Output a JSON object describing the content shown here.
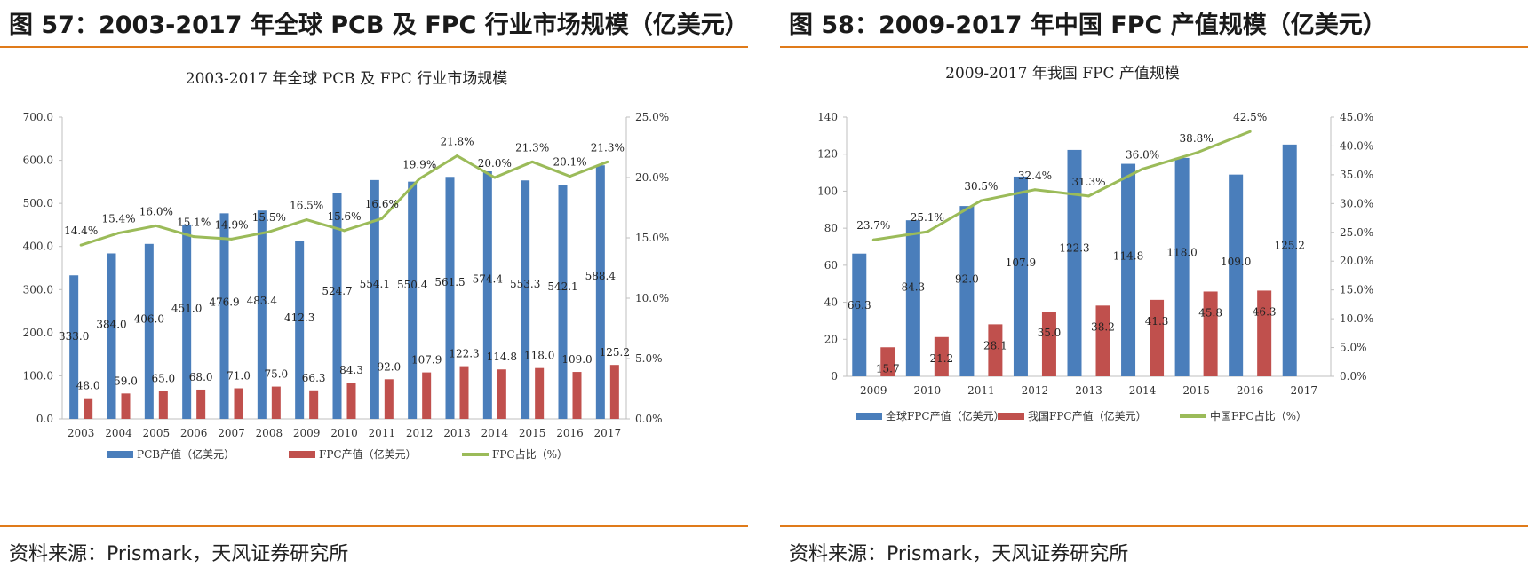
{
  "left": {
    "header": "图 57：2003-2017 年全球 PCB 及 FPC 行业市场规模（亿美元）",
    "source": "资料来源：Prismark，天风证券研究所",
    "chart_data": {
      "type": "bar",
      "title": "2003-2017 年全球 PCB 及 FPC 行业市场规模",
      "categories": [
        "2003",
        "2004",
        "2005",
        "2006",
        "2007",
        "2008",
        "2009",
        "2010",
        "2011",
        "2012",
        "2013",
        "2014",
        "2015",
        "2016",
        "2017"
      ],
      "series": [
        {
          "name": "PCB产值（亿美元）",
          "kind": "bar",
          "axis": "left",
          "color": "#4a7ebb",
          "values": [
            333.0,
            384.0,
            406.0,
            451.0,
            476.9,
            483.4,
            412.3,
            524.7,
            554.1,
            550.4,
            561.5,
            574.4,
            553.3,
            542.1,
            588.4
          ],
          "labels": [
            "333.0",
            "384.0",
            "406.0",
            "451.0",
            "476.9",
            "483.4",
            "412.3",
            "524.7",
            "554.1",
            "550.4",
            "561.5",
            "574.4",
            "553.3",
            "542.1",
            "588.4"
          ]
        },
        {
          "name": "FPC产值（亿美元）",
          "kind": "bar",
          "axis": "left",
          "color": "#c0504d",
          "values": [
            48.0,
            59.0,
            65.0,
            68.0,
            71.0,
            75.0,
            66.3,
            84.3,
            92.0,
            107.9,
            122.3,
            114.8,
            118.0,
            109.0,
            125.2
          ],
          "labels": [
            "48.0",
            "59.0",
            "65.0",
            "68.0",
            "71.0",
            "75.0",
            "66.3",
            "84.3",
            "92.0",
            "107.9",
            "122.3",
            "114.8",
            "118.0",
            "109.0",
            "125.2"
          ]
        },
        {
          "name": "FPC占比（%）",
          "kind": "line",
          "axis": "right",
          "color": "#9bbb59",
          "values": [
            14.4,
            15.4,
            16.0,
            15.1,
            14.9,
            15.5,
            16.5,
            15.6,
            16.6,
            19.9,
            21.8,
            20.0,
            21.3,
            20.1,
            21.3
          ],
          "labels": [
            "14.4%",
            "15.4%",
            "16.0%",
            "15.1%",
            "14.9%",
            "15.5%",
            "16.5%",
            "15.6%",
            "16.6%",
            "19.9%",
            "21.8%",
            "20.0%",
            "21.3%",
            "20.1%",
            "21.3%"
          ]
        }
      ],
      "ylim": [
        0,
        700
      ],
      "yticks": [
        "0.0",
        "100.0",
        "200.0",
        "300.0",
        "400.0",
        "500.0",
        "600.0",
        "700.0"
      ],
      "y2lim": [
        0,
        25
      ],
      "y2ticks": [
        "0.0%",
        "5.0%",
        "10.0%",
        "15.0%",
        "20.0%",
        "25.0%"
      ],
      "legend": "bottom",
      "grid": false
    }
  },
  "right": {
    "header": "图 58：2009-2017 年中国 FPC 产值规模（亿美元）",
    "source": "资料来源：Prismark，天风证券研究所",
    "chart_data": {
      "type": "bar",
      "title": "2009-2017 年我国 FPC 产值规模",
      "categories": [
        "2009",
        "2010",
        "2011",
        "2012",
        "2013",
        "2014",
        "2015",
        "2016",
        "2017"
      ],
      "series": [
        {
          "name": "全球FPC产值（亿美元）",
          "kind": "bar",
          "axis": "left",
          "color": "#4a7ebb",
          "values": [
            66.3,
            84.3,
            92.0,
            107.9,
            122.3,
            114.8,
            118.0,
            109.0,
            125.2
          ],
          "labels": [
            "66.3",
            "84.3",
            "92.0",
            "107.9",
            "122.3",
            "114.8",
            "118.0",
            "109.0",
            "125.2"
          ]
        },
        {
          "name": "我国FPC产值（亿美元）",
          "kind": "bar",
          "axis": "left",
          "color": "#c0504d",
          "values": [
            15.7,
            21.2,
            28.1,
            35.0,
            38.2,
            41.3,
            45.8,
            46.3,
            null
          ],
          "labels": [
            "15.7",
            "21.2",
            "28.1",
            "35.0",
            "38.2",
            "41.3",
            "45.8",
            "46.3",
            ""
          ]
        },
        {
          "name": "中国FPC占比（%）",
          "kind": "line",
          "axis": "right",
          "color": "#9bbb59",
          "values": [
            23.7,
            25.1,
            30.5,
            32.4,
            31.3,
            36.0,
            38.8,
            42.5,
            null
          ],
          "labels": [
            "23.7%",
            "25.1%",
            "30.5%",
            "32.4%",
            "31.3%",
            "36.0%",
            "38.8%",
            "42.5%",
            ""
          ]
        }
      ],
      "ylim": [
        0,
        140
      ],
      "yticks": [
        "0",
        "20",
        "40",
        "60",
        "80",
        "100",
        "120",
        "140"
      ],
      "y2lim": [
        0,
        45
      ],
      "y2ticks": [
        "0.0%",
        "5.0%",
        "10.0%",
        "15.0%",
        "20.0%",
        "25.0%",
        "30.0%",
        "35.0%",
        "40.0%",
        "45.0%"
      ],
      "legend": "bottom",
      "grid": false
    }
  }
}
